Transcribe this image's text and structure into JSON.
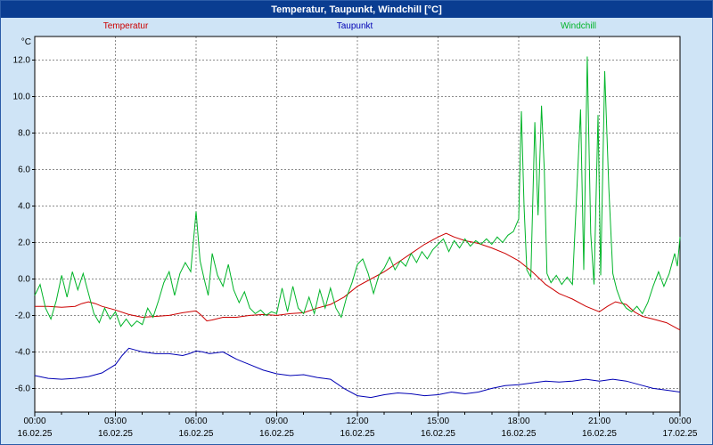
{
  "window": {
    "title": "Temperatur, Taupunkt, Windchill [°C]"
  },
  "chart_data": {
    "type": "line",
    "title": "Temperatur, Taupunkt, Windchill [°C]",
    "y_unit": "°C",
    "xlim": [
      0,
      24
    ],
    "ylim": [
      -7.3,
      13.3
    ],
    "grid": "dashed",
    "legend_position": "top",
    "y_ticks": [
      -6,
      -4,
      -2,
      0,
      2,
      4,
      6,
      8,
      10,
      12
    ],
    "x_ticks": [
      0,
      3,
      6,
      9,
      12,
      15,
      18,
      21,
      24
    ],
    "x_tick_labels": [
      "00:00",
      "03:00",
      "06:00",
      "09:00",
      "12:00",
      "15:00",
      "18:00",
      "21:00",
      "00:00"
    ],
    "x_tick_dates": [
      "16.02.25",
      "16.02.25",
      "16.02.25",
      "16.02.25",
      "16.02.25",
      "16.02.25",
      "16.02.25",
      "16.02.25",
      "17.02.25"
    ],
    "series": [
      {
        "name": "Temperatur",
        "color": "#cc0000",
        "points": [
          [
            0,
            -1.5
          ],
          [
            0.5,
            -1.5
          ],
          [
            1,
            -1.55
          ],
          [
            1.5,
            -1.5
          ],
          [
            1.75,
            -1.35
          ],
          [
            2,
            -1.25
          ],
          [
            2.25,
            -1.35
          ],
          [
            2.5,
            -1.5
          ],
          [
            3,
            -1.7
          ],
          [
            3.5,
            -1.95
          ],
          [
            4,
            -2.1
          ],
          [
            4.5,
            -2.05
          ],
          [
            5,
            -2.0
          ],
          [
            5.5,
            -1.85
          ],
          [
            6,
            -1.75
          ],
          [
            6.2,
            -2.0
          ],
          [
            6.4,
            -2.3
          ],
          [
            6.6,
            -2.25
          ],
          [
            7,
            -2.1
          ],
          [
            7.5,
            -2.1
          ],
          [
            8,
            -2.0
          ],
          [
            8.5,
            -1.95
          ],
          [
            9,
            -2.0
          ],
          [
            9.5,
            -1.9
          ],
          [
            10,
            -1.85
          ],
          [
            10.5,
            -1.6
          ],
          [
            11,
            -1.4
          ],
          [
            11.5,
            -1.0
          ],
          [
            12,
            -0.4
          ],
          [
            12.5,
            0.0
          ],
          [
            13,
            0.4
          ],
          [
            13.5,
            0.9
          ],
          [
            14,
            1.4
          ],
          [
            14.5,
            1.9
          ],
          [
            15,
            2.3
          ],
          [
            15.3,
            2.5
          ],
          [
            15.6,
            2.3
          ],
          [
            16,
            2.1
          ],
          [
            16.5,
            1.95
          ],
          [
            17,
            1.7
          ],
          [
            17.5,
            1.4
          ],
          [
            18,
            1.0
          ],
          [
            18.5,
            0.4
          ],
          [
            19,
            -0.3
          ],
          [
            19.5,
            -0.8
          ],
          [
            20,
            -1.1
          ],
          [
            20.5,
            -1.5
          ],
          [
            21,
            -1.8
          ],
          [
            21.3,
            -1.5
          ],
          [
            21.6,
            -1.25
          ],
          [
            22,
            -1.4
          ],
          [
            22.3,
            -1.8
          ],
          [
            22.6,
            -2.05
          ],
          [
            23,
            -2.2
          ],
          [
            23.5,
            -2.4
          ],
          [
            24,
            -2.8
          ]
        ]
      },
      {
        "name": "Taupunkt",
        "color": "#0000b4",
        "points": [
          [
            0,
            -5.3
          ],
          [
            0.5,
            -5.45
          ],
          [
            1,
            -5.5
          ],
          [
            1.5,
            -5.45
          ],
          [
            2,
            -5.35
          ],
          [
            2.5,
            -5.15
          ],
          [
            3,
            -4.7
          ],
          [
            3.25,
            -4.2
          ],
          [
            3.5,
            -3.8
          ],
          [
            3.75,
            -3.9
          ],
          [
            4,
            -4.0
          ],
          [
            4.25,
            -4.05
          ],
          [
            4.5,
            -4.1
          ],
          [
            5,
            -4.1
          ],
          [
            5.5,
            -4.2
          ],
          [
            5.75,
            -4.1
          ],
          [
            6,
            -3.95
          ],
          [
            6.25,
            -4.0
          ],
          [
            6.5,
            -4.1
          ],
          [
            6.75,
            -4.05
          ],
          [
            7,
            -4.0
          ],
          [
            7.25,
            -4.2
          ],
          [
            7.5,
            -4.4
          ],
          [
            7.75,
            -4.55
          ],
          [
            8,
            -4.7
          ],
          [
            8.5,
            -5.0
          ],
          [
            9,
            -5.2
          ],
          [
            9.5,
            -5.3
          ],
          [
            10,
            -5.25
          ],
          [
            10.5,
            -5.4
          ],
          [
            11,
            -5.5
          ],
          [
            11.5,
            -6.0
          ],
          [
            12,
            -6.4
          ],
          [
            12.5,
            -6.5
          ],
          [
            13,
            -6.35
          ],
          [
            13.5,
            -6.25
          ],
          [
            14,
            -6.3
          ],
          [
            14.5,
            -6.4
          ],
          [
            15,
            -6.35
          ],
          [
            15.5,
            -6.2
          ],
          [
            16,
            -6.3
          ],
          [
            16.5,
            -6.2
          ],
          [
            17,
            -6.0
          ],
          [
            17.5,
            -5.85
          ],
          [
            18,
            -5.8
          ],
          [
            18.5,
            -5.7
          ],
          [
            19,
            -5.6
          ],
          [
            19.5,
            -5.65
          ],
          [
            20,
            -5.6
          ],
          [
            20.5,
            -5.5
          ],
          [
            21,
            -5.6
          ],
          [
            21.5,
            -5.5
          ],
          [
            22,
            -5.6
          ],
          [
            22.5,
            -5.8
          ],
          [
            23,
            -6.0
          ],
          [
            23.5,
            -6.1
          ],
          [
            24,
            -6.2
          ]
        ]
      },
      {
        "name": "Windchill",
        "color": "#00b428",
        "points": [
          [
            0,
            -0.9
          ],
          [
            0.2,
            -0.3
          ],
          [
            0.4,
            -1.6
          ],
          [
            0.6,
            -2.2
          ],
          [
            0.8,
            -1.2
          ],
          [
            1.0,
            0.2
          ],
          [
            1.2,
            -1.0
          ],
          [
            1.4,
            0.4
          ],
          [
            1.6,
            -0.6
          ],
          [
            1.8,
            0.3
          ],
          [
            2.0,
            -0.8
          ],
          [
            2.2,
            -1.9
          ],
          [
            2.4,
            -2.4
          ],
          [
            2.6,
            -1.6
          ],
          [
            2.8,
            -2.2
          ],
          [
            3.0,
            -1.8
          ],
          [
            3.2,
            -2.6
          ],
          [
            3.4,
            -2.2
          ],
          [
            3.6,
            -2.6
          ],
          [
            3.8,
            -2.3
          ],
          [
            4.0,
            -2.5
          ],
          [
            4.2,
            -1.6
          ],
          [
            4.4,
            -2.1
          ],
          [
            4.6,
            -1.2
          ],
          [
            4.8,
            -0.2
          ],
          [
            5.0,
            0.4
          ],
          [
            5.2,
            -0.9
          ],
          [
            5.4,
            0.3
          ],
          [
            5.6,
            0.9
          ],
          [
            5.8,
            0.4
          ],
          [
            6.0,
            3.7
          ],
          [
            6.15,
            1.0
          ],
          [
            6.3,
            0.0
          ],
          [
            6.45,
            -0.9
          ],
          [
            6.6,
            1.4
          ],
          [
            6.8,
            0.2
          ],
          [
            7.0,
            -0.4
          ],
          [
            7.2,
            0.8
          ],
          [
            7.4,
            -0.6
          ],
          [
            7.6,
            -1.3
          ],
          [
            7.8,
            -0.7
          ],
          [
            8.0,
            -1.6
          ],
          [
            8.2,
            -1.9
          ],
          [
            8.4,
            -1.7
          ],
          [
            8.6,
            -2.0
          ],
          [
            8.8,
            -1.8
          ],
          [
            9.0,
            -1.9
          ],
          [
            9.2,
            -0.5
          ],
          [
            9.4,
            -1.8
          ],
          [
            9.6,
            -0.4
          ],
          [
            9.8,
            -1.6
          ],
          [
            10.0,
            -1.9
          ],
          [
            10.2,
            -1.0
          ],
          [
            10.4,
            -1.9
          ],
          [
            10.6,
            -0.6
          ],
          [
            10.8,
            -1.6
          ],
          [
            11.0,
            -0.5
          ],
          [
            11.2,
            -1.6
          ],
          [
            11.4,
            -2.1
          ],
          [
            11.6,
            -1.0
          ],
          [
            11.8,
            -0.2
          ],
          [
            12.0,
            0.8
          ],
          [
            12.2,
            1.1
          ],
          [
            12.4,
            0.3
          ],
          [
            12.6,
            -0.8
          ],
          [
            12.8,
            0.2
          ],
          [
            13.0,
            0.6
          ],
          [
            13.2,
            1.2
          ],
          [
            13.4,
            0.5
          ],
          [
            13.6,
            1.0
          ],
          [
            13.8,
            0.7
          ],
          [
            14.0,
            1.4
          ],
          [
            14.2,
            0.9
          ],
          [
            14.4,
            1.5
          ],
          [
            14.6,
            1.1
          ],
          [
            14.8,
            1.6
          ],
          [
            15.0,
            1.9
          ],
          [
            15.2,
            2.2
          ],
          [
            15.4,
            1.5
          ],
          [
            15.6,
            2.1
          ],
          [
            15.8,
            1.7
          ],
          [
            16.0,
            2.2
          ],
          [
            16.2,
            1.8
          ],
          [
            16.4,
            2.1
          ],
          [
            16.6,
            1.9
          ],
          [
            16.8,
            2.2
          ],
          [
            17.0,
            1.9
          ],
          [
            17.2,
            2.3
          ],
          [
            17.4,
            2.0
          ],
          [
            17.6,
            2.4
          ],
          [
            17.8,
            2.6
          ],
          [
            18.0,
            3.3
          ],
          [
            18.1,
            9.2
          ],
          [
            18.2,
            4.0
          ],
          [
            18.3,
            0.5
          ],
          [
            18.45,
            0.1
          ],
          [
            18.6,
            8.6
          ],
          [
            18.72,
            3.5
          ],
          [
            18.85,
            9.5
          ],
          [
            18.95,
            6.0
          ],
          [
            19.05,
            0.3
          ],
          [
            19.2,
            -0.2
          ],
          [
            19.4,
            0.2
          ],
          [
            19.6,
            -0.3
          ],
          [
            19.8,
            0.1
          ],
          [
            20.0,
            -0.3
          ],
          [
            20.15,
            4.5
          ],
          [
            20.3,
            9.3
          ],
          [
            20.42,
            0.5
          ],
          [
            20.55,
            12.2
          ],
          [
            20.68,
            2.5
          ],
          [
            20.8,
            -0.3
          ],
          [
            20.95,
            9.0
          ],
          [
            21.05,
            0.2
          ],
          [
            21.2,
            11.4
          ],
          [
            21.35,
            5.0
          ],
          [
            21.5,
            0.3
          ],
          [
            21.65,
            -0.6
          ],
          [
            21.8,
            -1.2
          ],
          [
            22.0,
            -1.6
          ],
          [
            22.2,
            -1.8
          ],
          [
            22.4,
            -1.5
          ],
          [
            22.6,
            -1.9
          ],
          [
            22.8,
            -1.3
          ],
          [
            23.0,
            -0.4
          ],
          [
            23.2,
            0.4
          ],
          [
            23.4,
            -0.4
          ],
          [
            23.6,
            0.3
          ],
          [
            23.8,
            1.4
          ],
          [
            23.9,
            0.7
          ],
          [
            24.0,
            2.3
          ]
        ]
      }
    ]
  }
}
